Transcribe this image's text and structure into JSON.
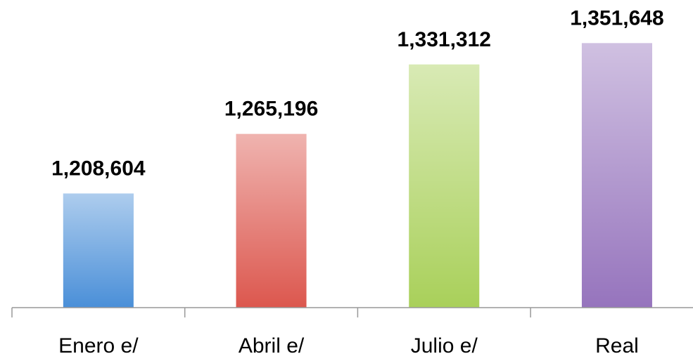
{
  "chart_data": {
    "type": "bar",
    "categories": [
      "Enero e/",
      "Abril e/",
      "Julio e/",
      "Real"
    ],
    "values": [
      1208604,
      1265196,
      1331312,
      1351648
    ],
    "value_labels": [
      "1,208,604",
      "1,265,196",
      "1,331,312",
      "1,351,648"
    ],
    "colors": [
      "#4a8fd8",
      "#dc574e",
      "#a9d05a",
      "#9674bd"
    ],
    "ylim": [
      1100000,
      1380000
    ]
  }
}
